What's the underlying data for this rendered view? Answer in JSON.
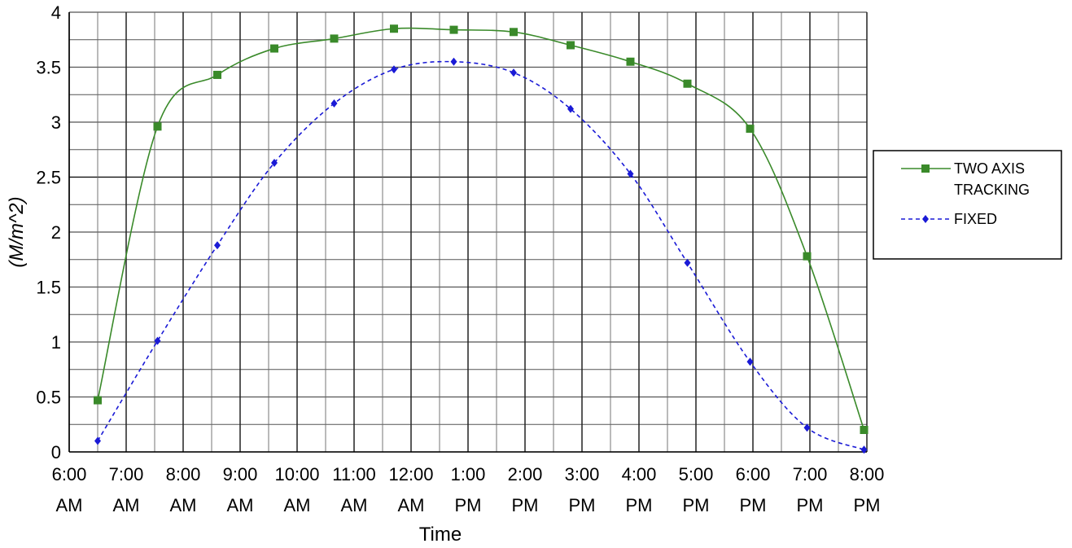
{
  "chart_data": {
    "type": "line",
    "title": "",
    "xlabel": "Time",
    "ylabel": "(M/m^2)",
    "ylim": [
      0,
      4
    ],
    "yticks": [
      "0",
      "0.5",
      "1",
      "1.5",
      "2",
      "2.5",
      "3",
      "3.5",
      "4"
    ],
    "grid": true,
    "legend_position": "right",
    "x_ticks": [
      {
        "line1": "6:00",
        "line2": "AM"
      },
      {
        "line1": "7:00",
        "line2": "AM"
      },
      {
        "line1": "8:00",
        "line2": "AM"
      },
      {
        "line1": "9:00",
        "line2": "AM"
      },
      {
        "line1": "10:00",
        "line2": "AM"
      },
      {
        "line1": "11:00",
        "line2": "AM"
      },
      {
        "line1": "12:00",
        "line2": "AM"
      },
      {
        "line1": "1:00",
        "line2": "PM"
      },
      {
        "line1": "2:00",
        "line2": "PM"
      },
      {
        "line1": "3:00",
        "line2": "PM"
      },
      {
        "line1": "4:00",
        "line2": "PM"
      },
      {
        "line1": "5:00",
        "line2": "PM"
      },
      {
        "line1": "6:00",
        "line2": "PM"
      },
      {
        "line1": "7:00",
        "line2": "PM"
      },
      {
        "line1": "8:00",
        "line2": "PM"
      }
    ],
    "series": [
      {
        "name": "TWO AXIS TRACKING",
        "color": "#3a8a2a",
        "style": "solid",
        "marker": "square",
        "x": [
          6.5,
          7.55,
          8.6,
          9.6,
          10.65,
          11.7,
          12.75,
          13.8,
          14.8,
          15.85,
          16.85,
          17.95,
          18.95,
          19.95
        ],
        "y": [
          0.47,
          2.96,
          3.43,
          3.67,
          3.76,
          3.85,
          3.84,
          3.82,
          3.7,
          3.55,
          3.35,
          2.94,
          1.78,
          0.2
        ]
      },
      {
        "name": "FIXED",
        "color": "#1a1ad6",
        "style": "dashed",
        "marker": "diamond",
        "x": [
          6.5,
          7.55,
          8.6,
          9.6,
          10.65,
          11.7,
          12.75,
          13.8,
          14.8,
          15.85,
          16.85,
          17.95,
          18.95,
          19.95
        ],
        "y": [
          0.1,
          1.01,
          1.88,
          2.63,
          3.17,
          3.48,
          3.55,
          3.45,
          3.12,
          2.53,
          1.72,
          0.82,
          0.22,
          0.02
        ]
      }
    ]
  }
}
